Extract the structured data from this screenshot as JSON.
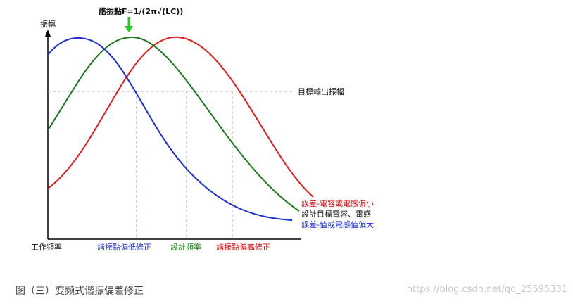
{
  "diagram": {
    "resonance_label": "諧振點F=1/(2π√(LC))",
    "y_axis_label": "振幅",
    "x_axis_label": "工作頻率",
    "target_label": "目標輸出振幅",
    "x_ticks": [
      {
        "label": "諧振點偏低修正",
        "color": "#2233cc"
      },
      {
        "label": "設計頻率",
        "color": "#118811"
      },
      {
        "label": "諧振點偏高修正",
        "color": "#cc1111"
      }
    ],
    "curves": [
      {
        "name": "誤差-電容或電感偏小",
        "color": "#e31b1b"
      },
      {
        "name": "設計目標電容、電感",
        "color": "#1b7a1b"
      },
      {
        "name": "誤差-值或電感值偏大",
        "color": "#1b2fd6"
      }
    ],
    "arrow_color": "#22cc22"
  },
  "caption": "图（三）变频式谐振偏差修正",
  "watermark": "https://blog.csdn.net/qq_25595331"
}
